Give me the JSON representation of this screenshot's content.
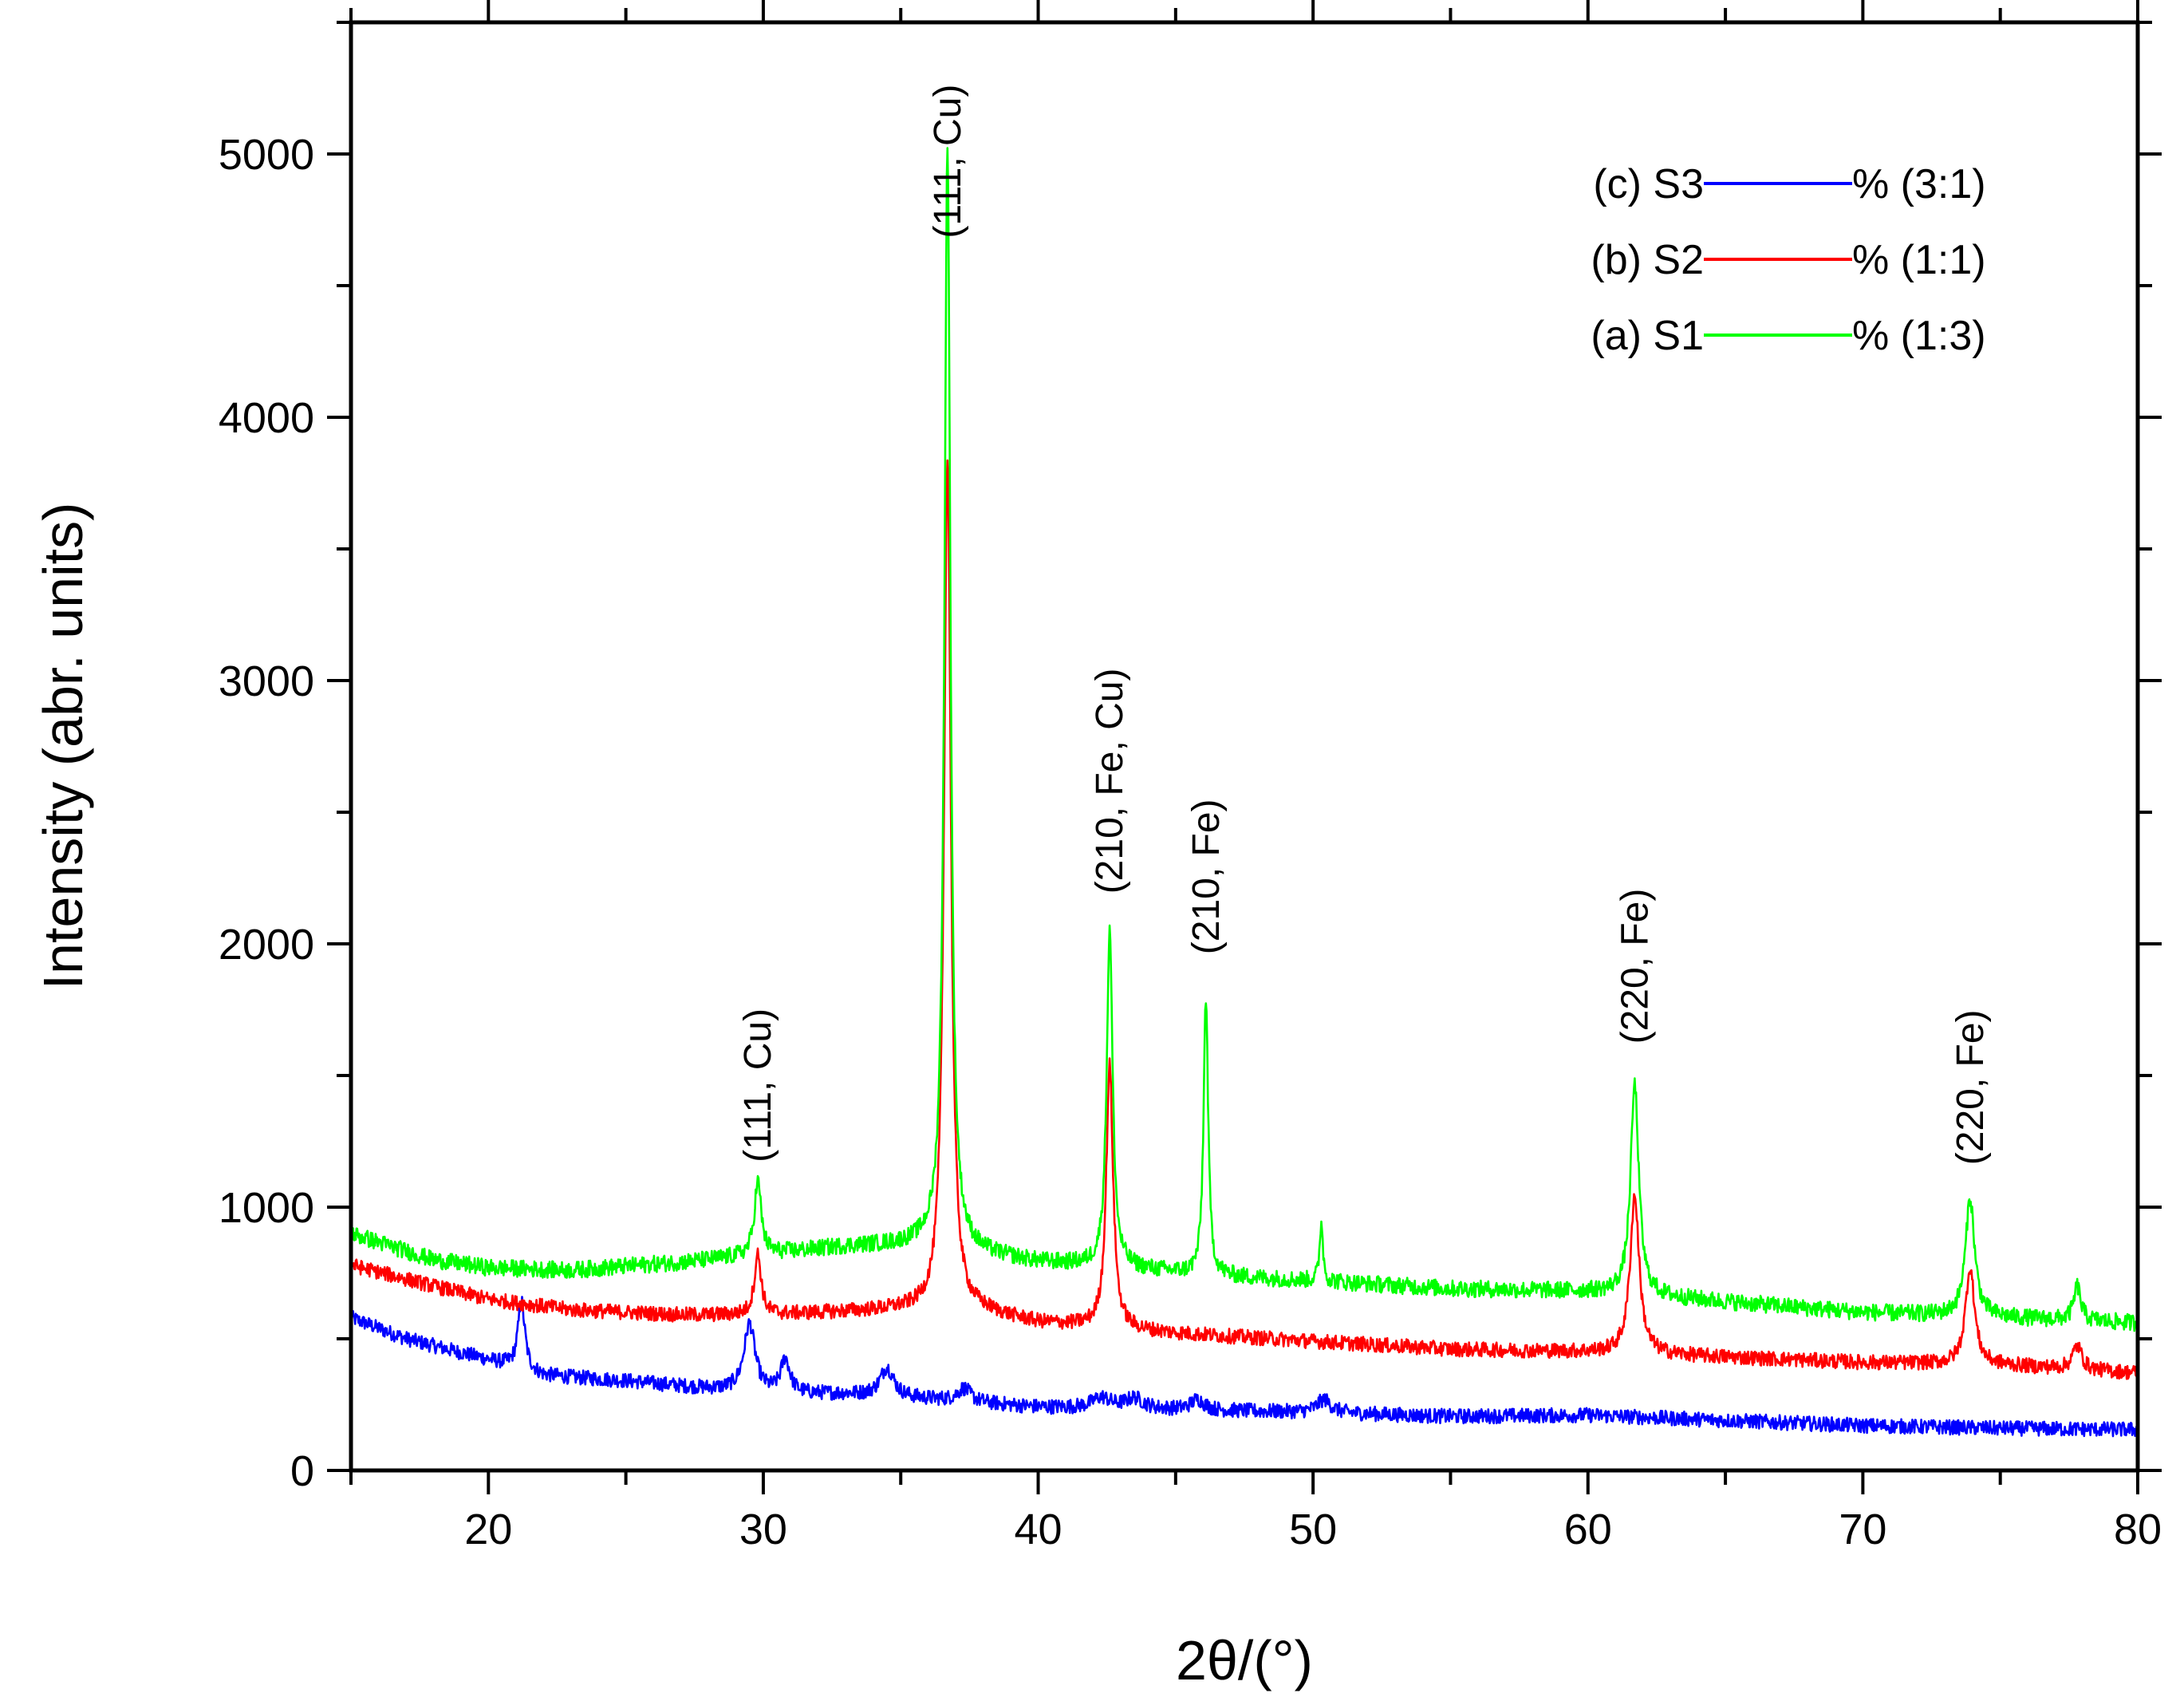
{
  "chart_data": {
    "type": "line",
    "title": "",
    "xlabel": "2θ/(°)",
    "ylabel": "Intensity (abr. units)",
    "xlim": [
      15,
      80
    ],
    "ylim": [
      0,
      5500
    ],
    "xticks": [
      20,
      30,
      40,
      50,
      60,
      70,
      80
    ],
    "yticks": [
      0,
      1000,
      2000,
      3000,
      4000,
      5000
    ],
    "x_minor_step": 5,
    "y_minor_step": 500,
    "grid": false,
    "legend_position": "top-right",
    "series": [
      {
        "name": "(c) S3",
        "legend_prefix": "(c) S3",
        "legend_suffix": "% (3:1)",
        "color": "#0000ff",
        "baseline": [
          [
            15,
            580
          ],
          [
            17,
            500
          ],
          [
            20,
            420
          ],
          [
            22,
            360
          ],
          [
            25,
            340
          ],
          [
            28,
            310
          ],
          [
            30,
            290
          ],
          [
            33,
            290
          ],
          [
            36,
            270
          ],
          [
            40,
            240
          ],
          [
            45,
            230
          ],
          [
            50,
            220
          ],
          [
            55,
            205
          ],
          [
            60,
            210
          ],
          [
            65,
            190
          ],
          [
            70,
            170
          ],
          [
            75,
            160
          ],
          [
            80,
            155
          ]
        ],
        "noise": 28,
        "peaks": [
          [
            21.2,
            260,
            0.15
          ],
          [
            29.5,
            260,
            0.25
          ],
          [
            30.8,
            130,
            0.2
          ],
          [
            34.5,
            110,
            0.3
          ],
          [
            37.3,
            50,
            0.3
          ],
          [
            42.3,
            40,
            0.4
          ],
          [
            43.5,
            40,
            0.4
          ],
          [
            45.8,
            40,
            0.3
          ],
          [
            50.4,
            50,
            0.3
          ]
        ]
      },
      {
        "name": "(b) S2",
        "legend_prefix": "(b) S2",
        "legend_suffix": "% (1:1)",
        "color": "#ff0000",
        "baseline": [
          [
            15,
            780
          ],
          [
            18,
            700
          ],
          [
            20,
            650
          ],
          [
            23,
            610
          ],
          [
            27,
            590
          ],
          [
            30,
            590
          ],
          [
            35,
            610
          ],
          [
            38,
            600
          ],
          [
            40,
            560
          ],
          [
            45,
            520
          ],
          [
            50,
            490
          ],
          [
            55,
            460
          ],
          [
            60,
            450
          ],
          [
            65,
            430
          ],
          [
            70,
            410
          ],
          [
            75,
            400
          ],
          [
            80,
            370
          ]
        ],
        "noise": 28,
        "peaks": [
          [
            29.8,
            230,
            0.15
          ],
          [
            36.7,
            3250,
            0.15
          ],
          [
            42.6,
            1000,
            0.15
          ],
          [
            61.7,
            600,
            0.2
          ],
          [
            73.9,
            370,
            0.2
          ],
          [
            77.8,
            90,
            0.2
          ]
        ]
      },
      {
        "name": "(a) S1",
        "legend_prefix": "(a) S1",
        "legend_suffix": "% (1:3)",
        "color": "#00ff00",
        "baseline": [
          [
            15,
            900
          ],
          [
            18,
            800
          ],
          [
            20,
            770
          ],
          [
            23,
            760
          ],
          [
            27,
            790
          ],
          [
            30,
            820
          ],
          [
            33,
            850
          ],
          [
            36,
            860
          ],
          [
            38,
            820
          ],
          [
            40,
            790
          ],
          [
            43,
            770
          ],
          [
            46,
            740
          ],
          [
            50,
            720
          ],
          [
            55,
            690
          ],
          [
            60,
            680
          ],
          [
            65,
            640
          ],
          [
            70,
            600
          ],
          [
            75,
            580
          ],
          [
            80,
            560
          ]
        ],
        "noise": 32,
        "peaks": [
          [
            29.8,
            280,
            0.15
          ],
          [
            36.7,
            4200,
            0.13
          ],
          [
            42.6,
            1280,
            0.13
          ],
          [
            46.1,
            1060,
            0.1
          ],
          [
            50.3,
            230,
            0.07
          ],
          [
            61.7,
            800,
            0.18
          ],
          [
            73.9,
            450,
            0.2
          ],
          [
            77.8,
            130,
            0.15
          ]
        ]
      }
    ],
    "annotations": [
      {
        "text": "(111, Cu)",
        "x": 29.8,
        "y": 1170
      },
      {
        "text": "(111, Cu)",
        "x": 36.7,
        "y": 4680
      },
      {
        "text": "(210, Fe, Cu)",
        "x": 42.6,
        "y": 2190
      },
      {
        "text": "(210, Fe)",
        "x": 46.1,
        "y": 1960
      },
      {
        "text": "(220, Fe)",
        "x": 61.7,
        "y": 1620
      },
      {
        "text": "(220, Fe)",
        "x": 73.9,
        "y": 1160
      }
    ]
  }
}
